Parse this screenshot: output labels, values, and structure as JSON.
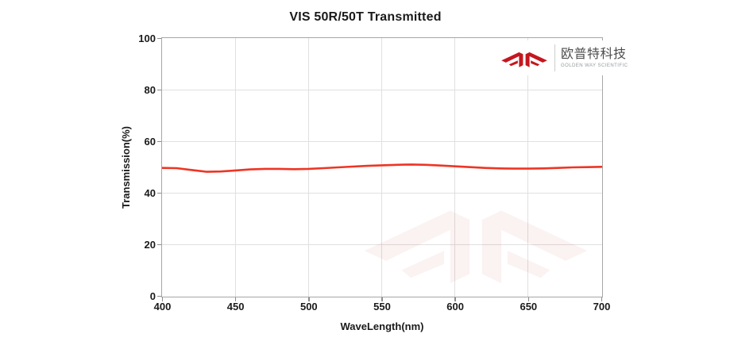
{
  "logo": {
    "brand_cn": "欧普特科技",
    "brand_en": "GOLDEN WAY SCIENTIFIC",
    "brand_color": "#c5161f"
  },
  "chart_data": {
    "type": "line",
    "title": "VIS 50R/50T Transmitted",
    "xlabel": "WaveLength(nm)",
    "ylabel": "Transmission(%)",
    "xlim": [
      400,
      700
    ],
    "ylim": [
      0,
      100
    ],
    "x_ticks": [
      400,
      450,
      500,
      550,
      600,
      650,
      700
    ],
    "y_ticks": [
      0,
      20,
      40,
      60,
      80,
      100
    ],
    "grid": true,
    "legend_position": "none",
    "line_color": "#ee3524",
    "series": [
      {
        "name": "Transmission",
        "x": [
          400,
          410,
          420,
          430,
          440,
          450,
          460,
          470,
          480,
          490,
          500,
          510,
          520,
          530,
          540,
          550,
          560,
          570,
          580,
          590,
          600,
          610,
          620,
          630,
          640,
          650,
          660,
          670,
          680,
          690,
          700
        ],
        "y": [
          49.8,
          49.7,
          49.0,
          48.3,
          48.4,
          48.8,
          49.2,
          49.4,
          49.4,
          49.3,
          49.4,
          49.7,
          50.0,
          50.3,
          50.6,
          50.8,
          51.0,
          51.1,
          51.0,
          50.7,
          50.4,
          50.1,
          49.8,
          49.6,
          49.5,
          49.5,
          49.6,
          49.8,
          50.0,
          50.1,
          50.2
        ]
      }
    ]
  }
}
